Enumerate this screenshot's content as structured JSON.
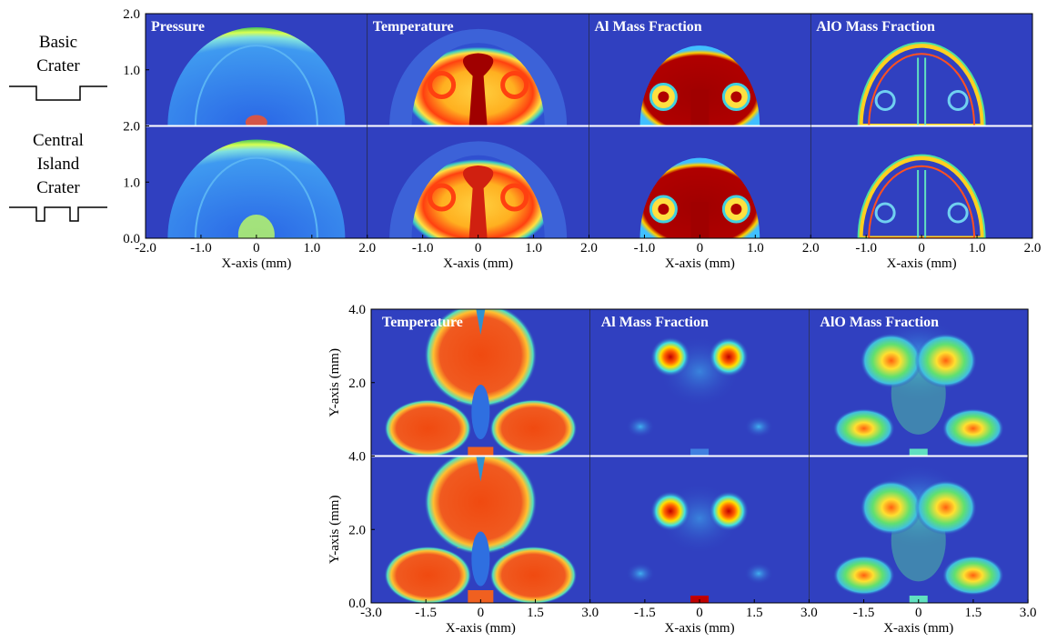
{
  "top_figure": {
    "row_labels": [
      [
        "Basic",
        "Crater"
      ],
      [
        "Central",
        "Island",
        "Crater"
      ]
    ],
    "panel_titles": [
      "Pressure",
      "Temperature",
      "Al Mass Fraction",
      "AlO Mass Fraction"
    ],
    "y_ticks": [
      [
        "2.0",
        "1.0"
      ],
      [
        "2.0",
        "1.0",
        "0.0"
      ]
    ],
    "x_ticks": [
      [
        "-2.0",
        "-1.0",
        "0",
        "1.0",
        "2.0"
      ],
      [
        "-1.0",
        "0",
        "1.0",
        "2.0"
      ],
      [
        "-1.0",
        "0",
        "1.0",
        "2.0"
      ],
      [
        "-1.0",
        "0",
        "1.0",
        "2.0"
      ]
    ],
    "x_axis_label": "X-axis (mm)"
  },
  "bottom_figure": {
    "panel_titles": [
      "Temperature",
      "Al Mass Fraction",
      "AlO Mass Fraction"
    ],
    "y_ticks": [
      [
        "4.0",
        "2.0"
      ],
      [
        "4.0",
        "2.0",
        "0.0"
      ]
    ],
    "x_ticks": [
      [
        "-3.0",
        "-1.5",
        "0",
        "1.5",
        "3.0"
      ],
      [
        "-1.5",
        "0",
        "1.5",
        "3.0"
      ],
      [
        "-1.5",
        "0",
        "1.5",
        "3.0"
      ]
    ],
    "x_axis_label": "X-axis (mm)",
    "y_axis_label": "Y-axis (mm)"
  }
}
